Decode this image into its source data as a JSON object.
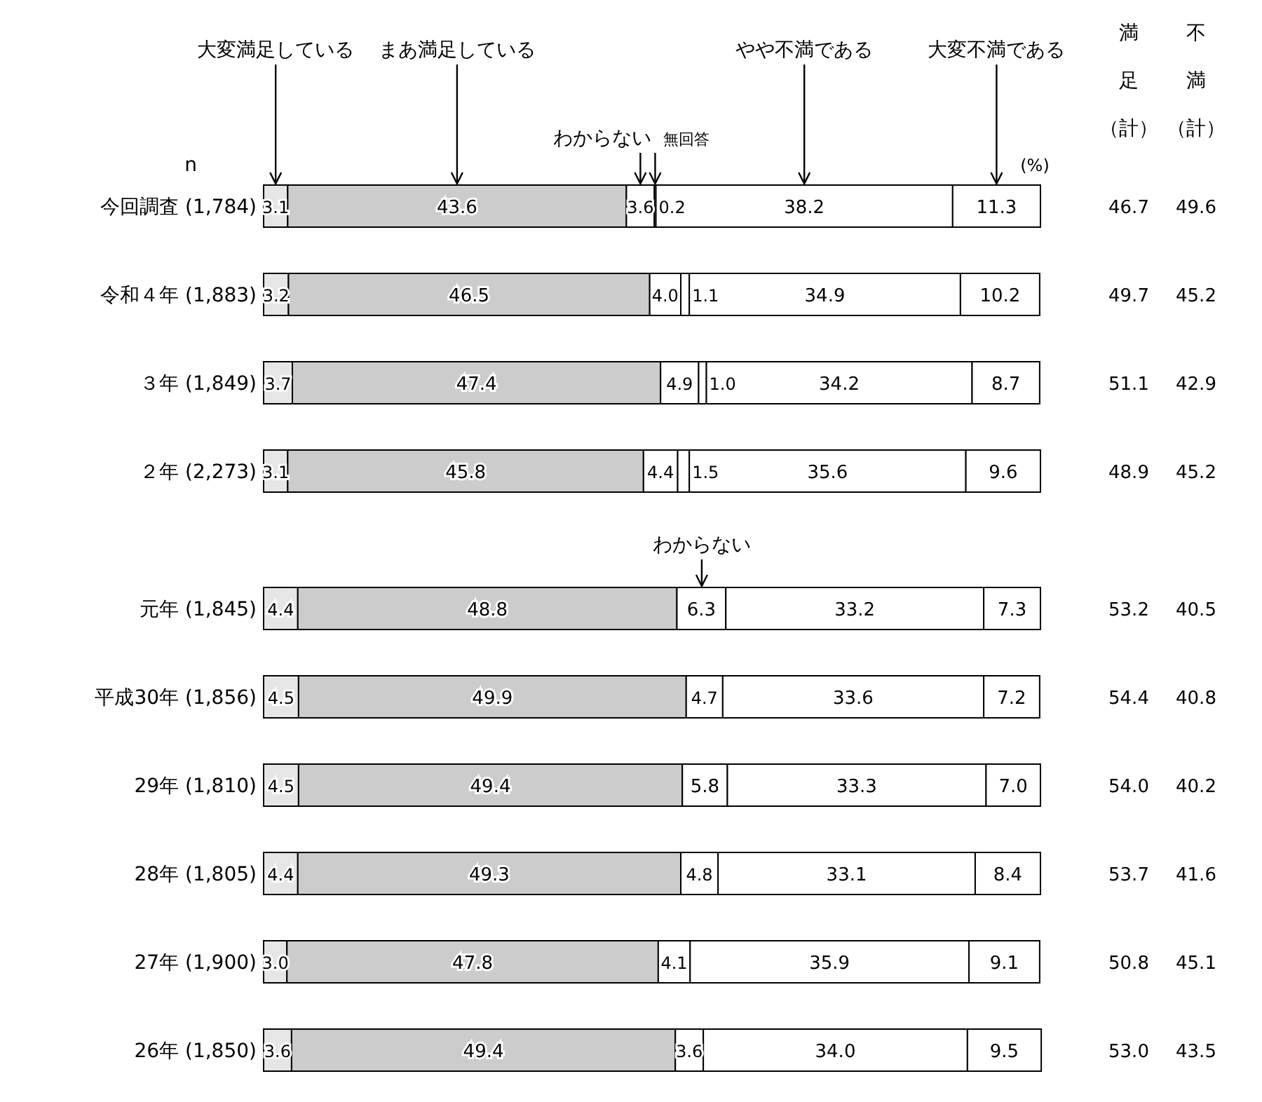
{
  "chart_data": {
    "type": "bar",
    "orientation": "horizontal",
    "stacked": true,
    "tick_labels": "y",
    "categories": [
      "今回調査 (1,784)",
      "令和４年 (1,883)",
      "３年 (1,849)",
      "２年 (2,273)",
      "元年 (1,845)",
      "平成30年 (1,856)",
      "29年 (1,810)",
      "28年 (1,805)",
      "27年 (1,900)",
      "26年 (1,850)"
    ],
    "xlim": [
      0,
      100
    ],
    "series": [
      {
        "name": "大変満足している",
        "color": "#e6e6e6",
        "values": [
          3.1,
          3.2,
          3.7,
          3.1,
          4.4,
          4.5,
          4.5,
          4.4,
          3.0,
          3.6
        ],
        "value_labels": [
          "3.1",
          "3.2",
          "3.7",
          "3.1",
          "4.4",
          "4.5",
          "4.5",
          "4.4",
          "3.0",
          "3.6"
        ]
      },
      {
        "name": "まあ満足している",
        "color": "#cccccc",
        "values": [
          43.6,
          46.5,
          47.4,
          45.8,
          48.8,
          49.9,
          49.4,
          49.3,
          47.8,
          49.4
        ],
        "value_labels": [
          "43.6",
          "46.5",
          "47.4",
          "45.8",
          "48.8",
          "49.9",
          "49.4",
          "49.3",
          "47.8",
          "49.4"
        ]
      },
      {
        "name": "わからない",
        "color": "#ffffff",
        "values": [
          3.6,
          4.0,
          4.9,
          4.4,
          6.3,
          4.7,
          5.8,
          4.8,
          4.1,
          3.6
        ],
        "value_labels": [
          "3.6",
          "4.0",
          "4.9",
          "4.4",
          "6.3",
          "4.7",
          "5.8",
          "4.8",
          "4.1",
          "3.6"
        ]
      },
      {
        "name": "無回答",
        "color": "#ffffff",
        "values": [
          0.2,
          1.1,
          1.0,
          1.5,
          null,
          null,
          null,
          null,
          null,
          null
        ],
        "value_labels": [
          "0.2",
          "1.1",
          "1.0",
          "1.5",
          null,
          null,
          null,
          null,
          null,
          null
        ]
      },
      {
        "name": "やや不満である",
        "color": "#ffffff",
        "values": [
          38.2,
          34.9,
          34.2,
          35.6,
          33.2,
          33.6,
          33.3,
          33.1,
          35.9,
          34.0
        ],
        "value_labels": [
          "38.2",
          "34.9",
          "34.2",
          "35.6",
          "33.2",
          "33.6",
          "33.3",
          "33.1",
          "35.9",
          "34.0"
        ]
      },
      {
        "name": "大変不満である",
        "color": "#ffffff",
        "values": [
          11.3,
          10.2,
          8.7,
          9.6,
          7.3,
          7.2,
          7.0,
          8.4,
          9.1,
          9.5
        ],
        "value_labels": [
          "11.3",
          "10.2",
          "8.7",
          "9.6",
          "7.3",
          "7.2",
          "7.0",
          "8.4",
          "9.1",
          "9.5"
        ]
      }
    ],
    "annotations": [
      "n",
      "(%)",
      "満足（計）",
      "不満（計）",
      "46.7",
      "49.6",
      "49.7",
      "45.2",
      "51.1",
      "42.9",
      "48.9",
      "45.2",
      "53.2",
      "40.5",
      "54.4",
      "40.8",
      "54.0",
      "40.2",
      "53.7",
      "41.6",
      "50.8",
      "45.1",
      "53.0",
      "43.5",
      {
        "text": "わからない",
        "x": 56.4,
        "y": "元年 (1,845)"
      }
    ]
  }
}
